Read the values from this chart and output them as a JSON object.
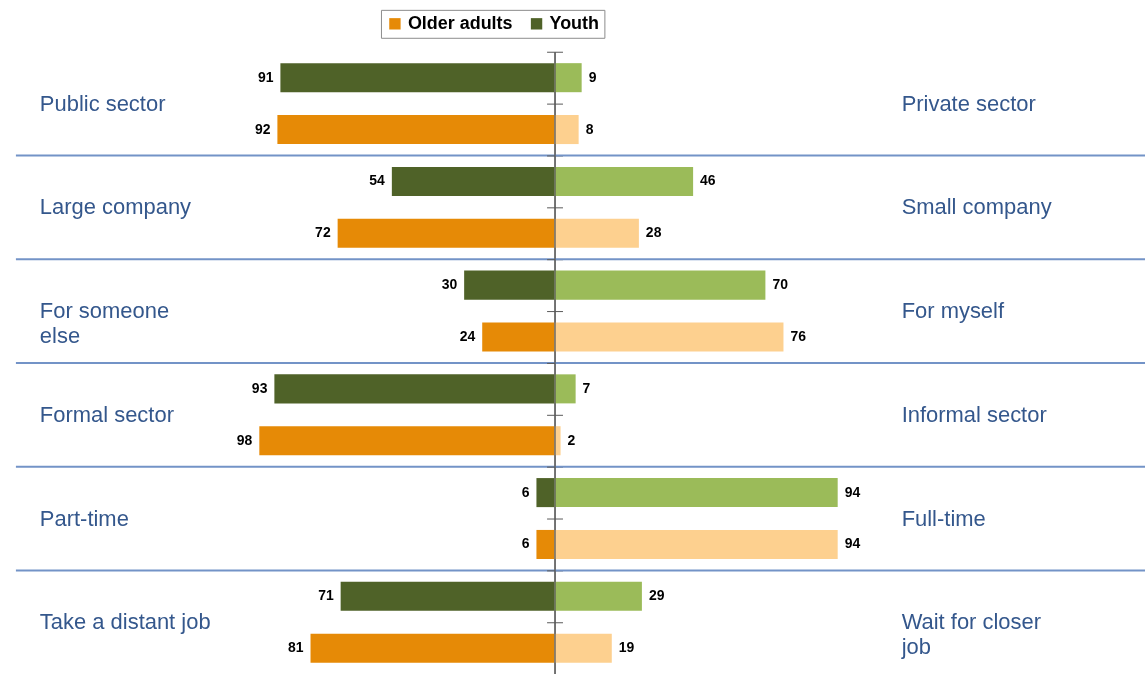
{
  "chart_data": [
    {
      "type": "bar",
      "orientation": "horizontal",
      "categories": [
        "Public sector",
        "Large company",
        "For someone\nelse",
        "Formal sector",
        "Part-time",
        "Take a distant job"
      ],
      "series": [
        {
          "name": "Youth",
          "color": "#4f6228",
          "values": [
            91,
            54,
            30,
            93,
            6,
            71
          ]
        },
        {
          "name": "Older adults",
          "color": "#e68a06",
          "values": [
            92,
            72,
            24,
            98,
            6,
            81
          ]
        }
      ],
      "data_labels": true,
      "xlim": [
        98,
        0
      ],
      "tick_labels": "y",
      "grid": "y",
      "legend": "top"
    },
    {
      "type": "bar",
      "orientation": "horizontal",
      "categories": [
        "Private sector",
        "Small company",
        "For myself",
        "Informal sector",
        "Full-time",
        "Wait for closer\njob"
      ],
      "series": [
        {
          "color": "#9bbb59",
          "values": [
            9,
            46,
            70,
            7,
            94,
            29
          ]
        },
        {
          "color": "#fdd08f",
          "values": [
            8,
            28,
            76,
            2,
            94,
            19
          ]
        }
      ],
      "data_labels": true,
      "xlim": [
        0,
        94
      ],
      "tick_labels": "y",
      "grid": "y"
    }
  ]
}
